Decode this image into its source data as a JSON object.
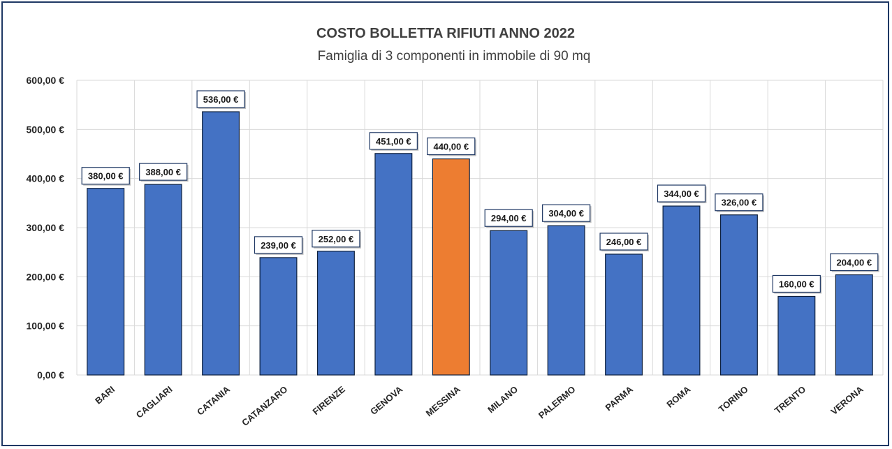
{
  "chart_data": {
    "type": "bar",
    "title": "COSTO BOLLETTA RIFIUTI ANNO 2022",
    "subtitle": "Famiglia di 3 componenti in immobile di 90 mq",
    "categories": [
      "BARI",
      "CAGLIARI",
      "CATANIA",
      "CATANZARO",
      "FIRENZE",
      "GENOVA",
      "MESSINA",
      "MILANO",
      "PALERMO",
      "PARMA",
      "ROMA",
      "TORINO",
      "TRENTO",
      "VERONA"
    ],
    "values": [
      380,
      388,
      536,
      239,
      252,
      451,
      440,
      294,
      304,
      246,
      344,
      326,
      160,
      204
    ],
    "data_labels": [
      "380,00 €",
      "388,00 €",
      "536,00 €",
      "239,00 €",
      "252,00 €",
      "451,00 €",
      "440,00 €",
      "294,00 €",
      "304,00 €",
      "246,00 €",
      "344,00 €",
      "326,00 €",
      "160,00 €",
      "204,00 €"
    ],
    "ylim": [
      0,
      600
    ],
    "y_ticks": [
      0,
      100,
      200,
      300,
      400,
      500,
      600
    ],
    "y_tick_labels": [
      "0,00 €",
      "100,00 €",
      "200,00 €",
      "300,00 €",
      "400,00 €",
      "500,00 €",
      "600,00 €"
    ],
    "xlabel": "",
    "ylabel": "",
    "grid": true,
    "colors": {
      "default_bar": "#4472c4",
      "highlight_bar": "#ed7d31",
      "bar_outline": "#0d1f3c",
      "grid": "#d9d9d9",
      "frame": "#1f3864"
    },
    "highlight_category": "MESSINA"
  }
}
